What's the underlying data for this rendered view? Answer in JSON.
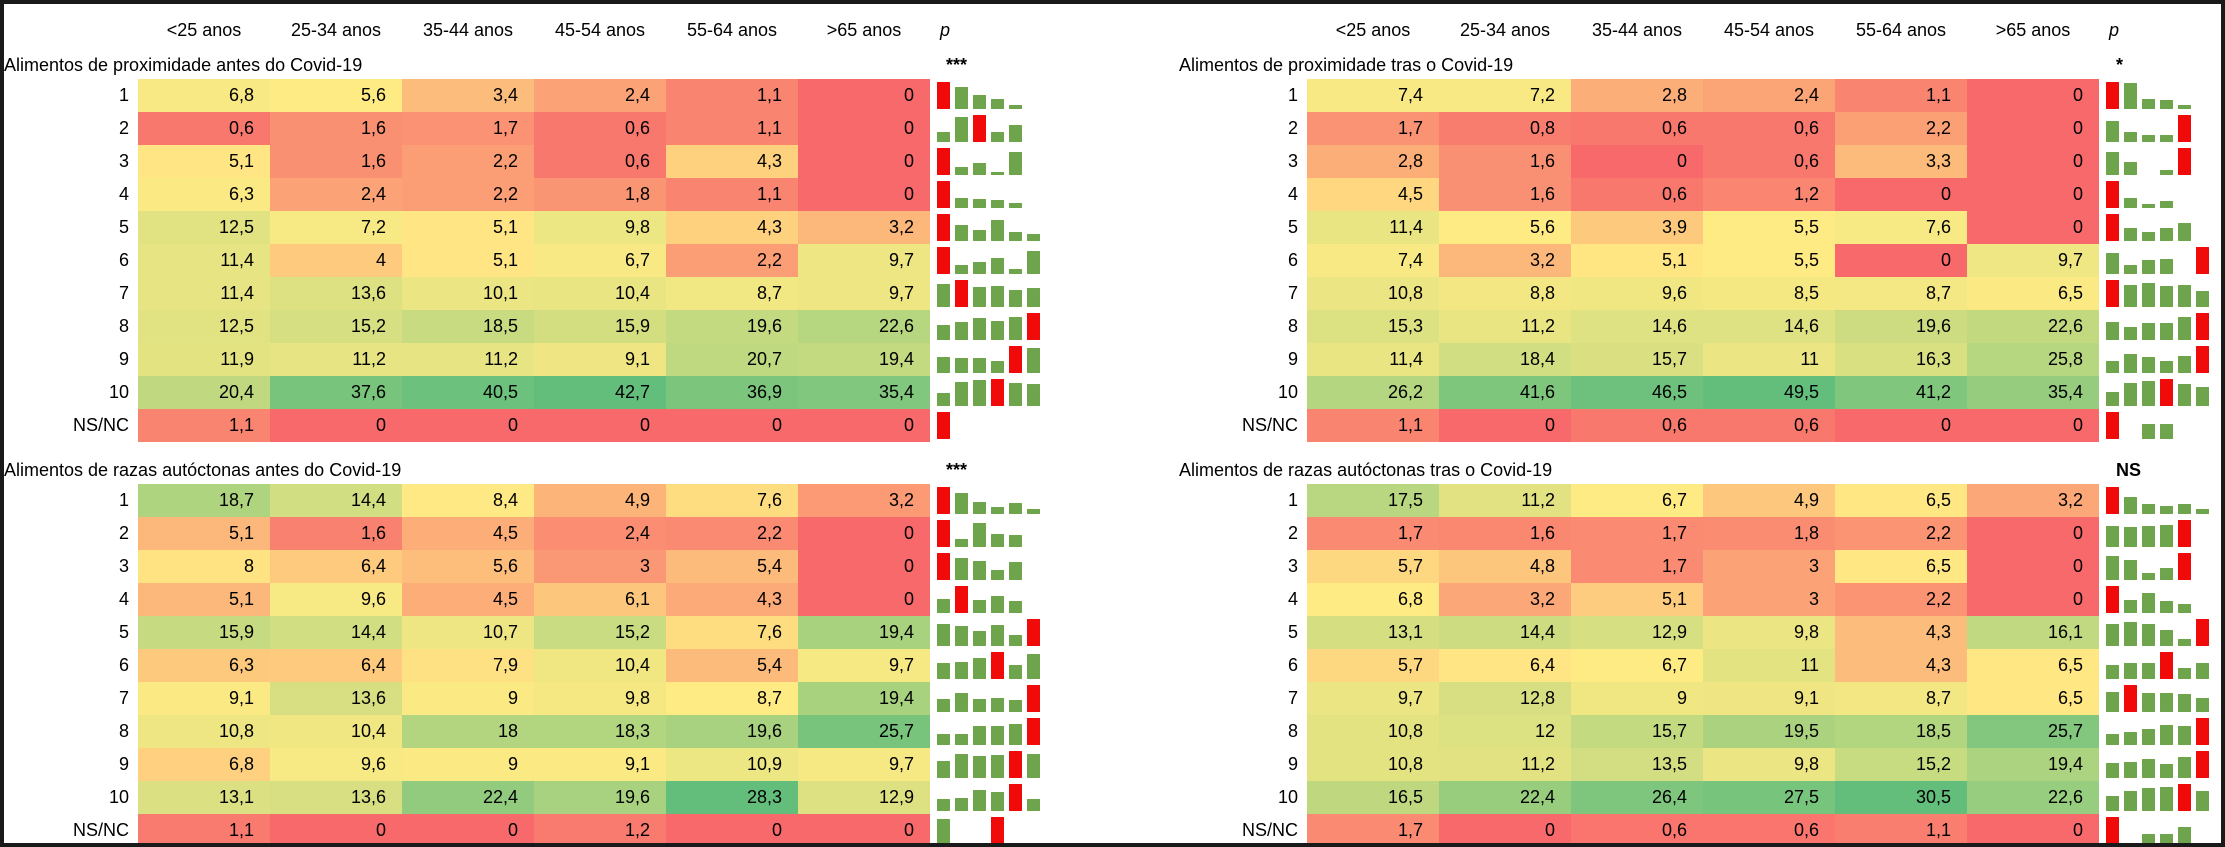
{
  "columns": [
    "<25 anos",
    "25-34 anos",
    "35-44 anos",
    "45-54 anos",
    "55-64 anos",
    ">65 anos"
  ],
  "p_label": "p",
  "colors": {
    "heat_min": "#F8696B",
    "heat_mid": "#FFEB84",
    "heat_max": "#63BE7B",
    "spark_green": "#6EA44C",
    "spark_red": "#F00A0A"
  },
  "chart_data": [
    {
      "type": "heatmap",
      "panel": "left",
      "title": "Alimentos de proximidade antes do Covid-19",
      "significance": "***",
      "categories": [
        "<25 anos",
        "25-34 anos",
        "35-44 anos",
        "45-54 anos",
        "55-64 anos",
        ">65 anos"
      ],
      "row_labels": [
        "1",
        "2",
        "3",
        "4",
        "5",
        "6",
        "7",
        "8",
        "9",
        "10",
        "NS/NC"
      ],
      "rows": [
        {
          "label": "1",
          "values": [
            6.8,
            5.6,
            3.4,
            2.4,
            1.1,
            0
          ]
        },
        {
          "label": "2",
          "values": [
            0.6,
            1.6,
            1.7,
            0.6,
            1.1,
            0
          ]
        },
        {
          "label": "3",
          "values": [
            5.1,
            1.6,
            2.2,
            0.6,
            4.3,
            0
          ]
        },
        {
          "label": "4",
          "values": [
            6.3,
            2.4,
            2.2,
            1.8,
            1.1,
            0
          ]
        },
        {
          "label": "5",
          "values": [
            12.5,
            7.2,
            5.1,
            9.8,
            4.3,
            3.2
          ]
        },
        {
          "label": "6",
          "values": [
            11.4,
            4,
            5.1,
            6.7,
            2.2,
            9.7
          ]
        },
        {
          "label": "7",
          "values": [
            11.4,
            13.6,
            10.1,
            10.4,
            8.7,
            9.7
          ]
        },
        {
          "label": "8",
          "values": [
            12.5,
            15.2,
            18.5,
            15.9,
            19.6,
            22.6
          ]
        },
        {
          "label": "9",
          "values": [
            11.9,
            11.2,
            11.2,
            9.1,
            20.7,
            19.4
          ]
        },
        {
          "label": "10",
          "values": [
            20.4,
            37.6,
            40.5,
            42.7,
            36.9,
            35.4
          ]
        },
        {
          "label": "NS/NC",
          "values": [
            1.1,
            0,
            0,
            0,
            0,
            0
          ]
        }
      ]
    },
    {
      "type": "heatmap",
      "panel": "left",
      "title": "Alimentos de razas autóctonas antes do Covid-19",
      "significance": "***",
      "categories": [
        "<25 anos",
        "25-34 anos",
        "35-44 anos",
        "45-54 anos",
        "55-64 anos",
        ">65 anos"
      ],
      "row_labels": [
        "1",
        "2",
        "3",
        "4",
        "5",
        "6",
        "7",
        "8",
        "9",
        "10",
        "NS/NC"
      ],
      "rows": [
        {
          "label": "1",
          "values": [
            18.7,
            14.4,
            8.4,
            4.9,
            7.6,
            3.2
          ]
        },
        {
          "label": "2",
          "values": [
            5.1,
            1.6,
            4.5,
            2.4,
            2.2,
            0
          ]
        },
        {
          "label": "3",
          "values": [
            8,
            6.4,
            5.6,
            3,
            5.4,
            0
          ]
        },
        {
          "label": "4",
          "values": [
            5.1,
            9.6,
            4.5,
            6.1,
            4.3,
            0
          ]
        },
        {
          "label": "5",
          "values": [
            15.9,
            14.4,
            10.7,
            15.2,
            7.6,
            19.4
          ]
        },
        {
          "label": "6",
          "values": [
            6.3,
            6.4,
            7.9,
            10.4,
            5.4,
            9.7
          ]
        },
        {
          "label": "7",
          "values": [
            9.1,
            13.6,
            9,
            9.8,
            8.7,
            19.4
          ]
        },
        {
          "label": "8",
          "values": [
            10.8,
            10.4,
            18,
            18.3,
            19.6,
            25.7
          ]
        },
        {
          "label": "9",
          "values": [
            6.8,
            9.6,
            9,
            9.1,
            10.9,
            9.7
          ]
        },
        {
          "label": "10",
          "values": [
            13.1,
            13.6,
            22.4,
            19.6,
            28.3,
            12.9
          ]
        },
        {
          "label": "NS/NC",
          "values": [
            1.1,
            0,
            0,
            1.2,
            0,
            0
          ]
        }
      ]
    },
    {
      "type": "heatmap",
      "panel": "right",
      "title": "Alimentos de proximidade tras o Covid-19",
      "significance": "*",
      "categories": [
        "<25 anos",
        "25-34 anos",
        "35-44 anos",
        "45-54 anos",
        "55-64 anos",
        ">65 anos"
      ],
      "row_labels": [
        "1",
        "2",
        "3",
        "4",
        "5",
        "6",
        "7",
        "8",
        "9",
        "10",
        "NS/NC"
      ],
      "rows": [
        {
          "label": "1",
          "values": [
            7.4,
            7.2,
            2.8,
            2.4,
            1.1,
            0
          ]
        },
        {
          "label": "2",
          "values": [
            1.7,
            0.8,
            0.6,
            0.6,
            2.2,
            0
          ]
        },
        {
          "label": "3",
          "values": [
            2.8,
            1.6,
            0,
            0.6,
            3.3,
            0
          ]
        },
        {
          "label": "4",
          "values": [
            4.5,
            1.6,
            0.6,
            1.2,
            0,
            0
          ]
        },
        {
          "label": "5",
          "values": [
            11.4,
            5.6,
            3.9,
            5.5,
            7.6,
            0
          ]
        },
        {
          "label": "6",
          "values": [
            7.4,
            3.2,
            5.1,
            5.5,
            0,
            9.7
          ]
        },
        {
          "label": "7",
          "values": [
            10.8,
            8.8,
            9.6,
            8.5,
            8.7,
            6.5
          ]
        },
        {
          "label": "8",
          "values": [
            15.3,
            11.2,
            14.6,
            14.6,
            19.6,
            22.6
          ]
        },
        {
          "label": "9",
          "values": [
            11.4,
            18.4,
            15.7,
            11,
            16.3,
            25.8
          ]
        },
        {
          "label": "10",
          "values": [
            26.2,
            41.6,
            46.5,
            49.5,
            41.2,
            35.4
          ]
        },
        {
          "label": "NS/NC",
          "values": [
            1.1,
            0,
            0.6,
            0.6,
            0,
            0
          ]
        }
      ]
    },
    {
      "type": "heatmap",
      "panel": "right",
      "title": "Alimentos de razas autóctonas tras o Covid-19",
      "significance": "NS",
      "categories": [
        "<25 anos",
        "25-34 anos",
        "35-44 anos",
        "45-54 anos",
        "55-64 anos",
        ">65 anos"
      ],
      "row_labels": [
        "1",
        "2",
        "3",
        "4",
        "5",
        "6",
        "7",
        "8",
        "9",
        "10",
        "NS/NC"
      ],
      "rows": [
        {
          "label": "1",
          "values": [
            17.5,
            11.2,
            6.7,
            4.9,
            6.5,
            3.2
          ]
        },
        {
          "label": "2",
          "values": [
            1.7,
            1.6,
            1.7,
            1.8,
            2.2,
            0
          ]
        },
        {
          "label": "3",
          "values": [
            5.7,
            4.8,
            1.7,
            3,
            6.5,
            0
          ]
        },
        {
          "label": "4",
          "values": [
            6.8,
            3.2,
            5.1,
            3,
            2.2,
            0
          ]
        },
        {
          "label": "5",
          "values": [
            13.1,
            14.4,
            12.9,
            9.8,
            4.3,
            16.1
          ]
        },
        {
          "label": "6",
          "values": [
            5.7,
            6.4,
            6.7,
            11,
            4.3,
            6.5
          ]
        },
        {
          "label": "7",
          "values": [
            9.7,
            12.8,
            9,
            9.1,
            8.7,
            6.5
          ]
        },
        {
          "label": "8",
          "values": [
            10.8,
            12,
            15.7,
            19.5,
            18.5,
            25.7
          ]
        },
        {
          "label": "9",
          "values": [
            10.8,
            11.2,
            13.5,
            9.8,
            15.2,
            19.4
          ]
        },
        {
          "label": "10",
          "values": [
            16.5,
            22.4,
            26.4,
            27.5,
            30.5,
            22.6
          ]
        },
        {
          "label": "NS/NC",
          "values": [
            1.7,
            0,
            0.6,
            0.6,
            1.1,
            0
          ]
        }
      ]
    }
  ]
}
